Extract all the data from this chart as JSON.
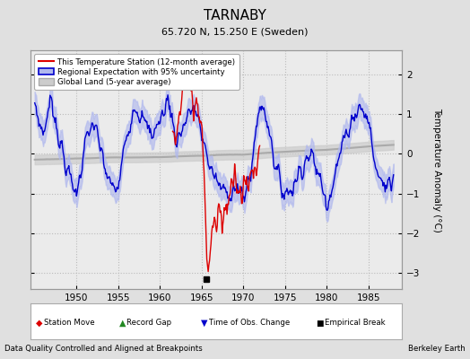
{
  "title": "TARNABY",
  "subtitle": "65.720 N, 15.250 E (Sweden)",
  "xlabel_bottom": "Data Quality Controlled and Aligned at Breakpoints",
  "xlabel_right": "Berkeley Earth",
  "ylabel": "Temperature Anomaly (°C)",
  "xlim": [
    1944.5,
    1989.0
  ],
  "ylim": [
    -3.4,
    2.6
  ],
  "yticks": [
    -3,
    -2,
    -1,
    0,
    1,
    2
  ],
  "xticks": [
    1950,
    1955,
    1960,
    1965,
    1970,
    1975,
    1980,
    1985
  ],
  "bg_color": "#e0e0e0",
  "plot_bg_color": "#ebebeb",
  "grid_color": "#bbbbbb",
  "red_line_color": "#dd0000",
  "blue_line_color": "#0000cc",
  "blue_fill_color": "#b0b8ee",
  "gray_line_color": "#aaaaaa",
  "gray_fill_color": "#cccccc",
  "empirical_break_year": 1965.6,
  "legend_items": [
    "This Temperature Station (12-month average)",
    "Regional Expectation with 95% uncertainty",
    "Global Land (5-year average)"
  ]
}
